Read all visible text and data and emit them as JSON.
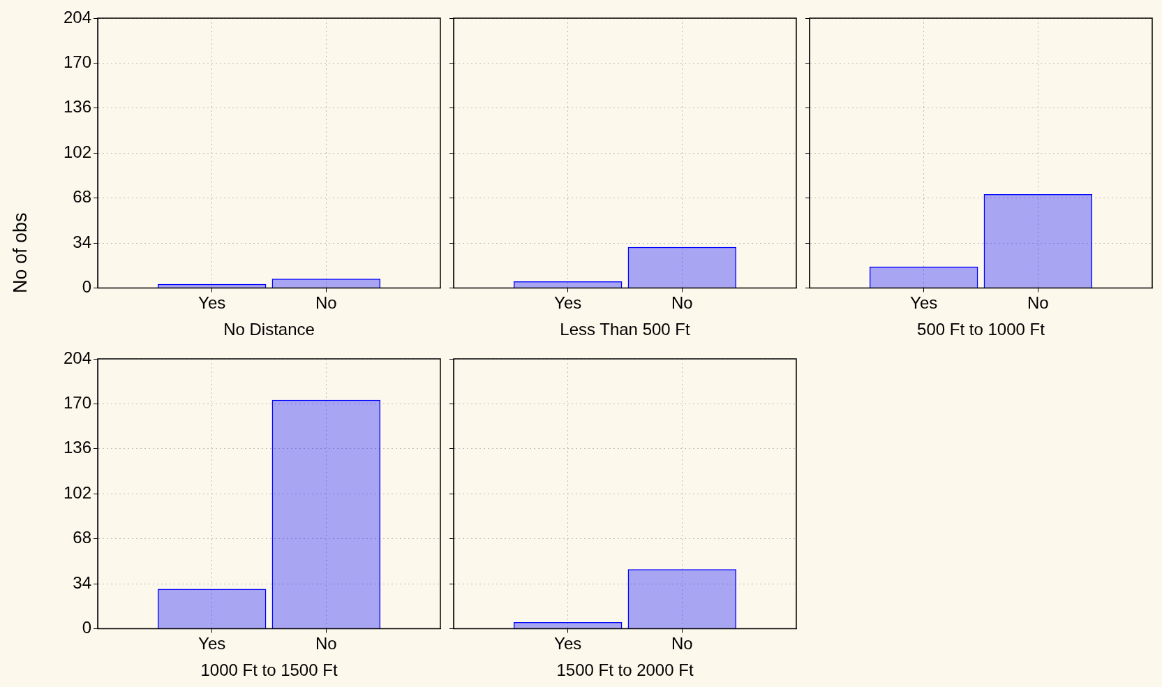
{
  "chart_data": [
    {
      "type": "bar",
      "categories": [
        "Yes",
        "No"
      ],
      "values": [
        3,
        7
      ],
      "color": "#0000ff",
      "xlabel": "No Distance",
      "ylabel": "No of obs",
      "ylim": [
        0,
        204
      ],
      "yticks": [
        0,
        34,
        68,
        102,
        136,
        170,
        204
      ],
      "grid": true
    },
    {
      "type": "bar",
      "categories": [
        "Yes",
        "No"
      ],
      "values": [
        5,
        31
      ],
      "color": "#0000ff",
      "xlabel": "Less Than 500 Ft",
      "ylim": [
        0,
        204
      ],
      "yticks": [
        0,
        34,
        68,
        102,
        136,
        170,
        204
      ],
      "grid": true,
      "tick_labels": "x"
    },
    {
      "type": "bar",
      "categories": [
        "Yes",
        "No"
      ],
      "values": [
        16,
        71
      ],
      "color": "#0000ff",
      "xlabel": "500 Ft to 1000 Ft",
      "ylim": [
        0,
        204
      ],
      "yticks": [
        0,
        34,
        68,
        102,
        136,
        170,
        204
      ],
      "grid": true,
      "tick_labels": "x"
    },
    {
      "type": "bar",
      "categories": [
        "Yes",
        "No"
      ],
      "values": [
        30,
        173
      ],
      "color": "#0000ff",
      "xlabel": "1000 Ft to 1500 Ft",
      "ylim": [
        0,
        204
      ],
      "yticks": [
        0,
        34,
        68,
        102,
        136,
        170,
        204
      ],
      "grid": true
    },
    {
      "type": "bar",
      "categories": [
        "Yes",
        "No"
      ],
      "values": [
        5,
        45
      ],
      "color": "#0000ff",
      "xlabel": "1500 Ft to 2000 Ft",
      "ylim": [
        0,
        204
      ],
      "yticks": [
        0,
        34,
        68,
        102,
        136,
        170,
        204
      ],
      "grid": true,
      "tick_labels": "x"
    }
  ]
}
